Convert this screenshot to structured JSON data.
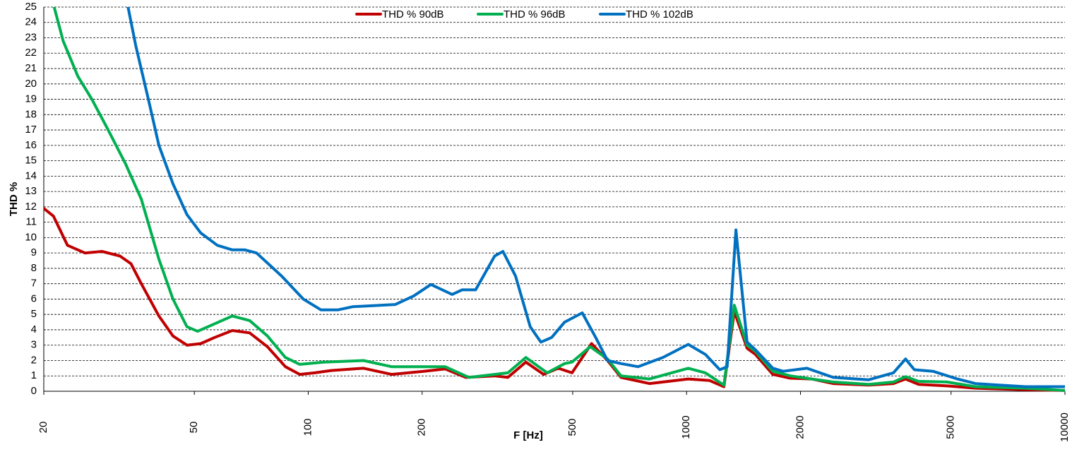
{
  "chart_data": {
    "type": "line",
    "x_label": "F [Hz]",
    "y_label": "THD %",
    "log_x": true,
    "grid": true,
    "legend": "top",
    "xlim": [
      20,
      10000
    ],
    "xticks": [
      20,
      50,
      100,
      200,
      500,
      1000,
      2000,
      5000,
      10000
    ],
    "ylim": [
      0,
      25
    ],
    "yticks": [
      0,
      1,
      2,
      3,
      4,
      5,
      6,
      7,
      8,
      9,
      10,
      11,
      12,
      13,
      14,
      15,
      16,
      17,
      18,
      19,
      20,
      21,
      22,
      23,
      24,
      25
    ],
    "series": [
      {
        "name": "THD % 90dB",
        "color": "#c00000",
        "x": [
          20,
          21.2,
          23.1,
          25.7,
          28.5,
          31.8,
          34,
          36.2,
          40.3,
          43.9,
          47.8,
          52,
          56.6,
          63,
          70,
          78,
          87,
          95,
          104,
          115,
          140,
          166,
          202,
          230,
          261,
          311,
          337,
          376,
          419,
          458,
          498,
          561,
          618,
          671,
          798,
          1010,
          1150,
          1255,
          1337,
          1445,
          1520,
          1690,
          1880,
          2140,
          2440,
          3030,
          3520,
          3790,
          4100,
          4880,
          5800,
          7850,
          10000
        ],
        "values": [
          11.9,
          11.4,
          9.5,
          9.0,
          9.1,
          8.8,
          8.3,
          7.0,
          4.9,
          3.6,
          3.0,
          3.1,
          3.5,
          3.95,
          3.8,
          2.9,
          1.6,
          1.1,
          1.2,
          1.35,
          1.5,
          1.1,
          1.3,
          1.45,
          0.9,
          1.0,
          0.9,
          1.9,
          1.1,
          1.5,
          1.2,
          3.1,
          2.0,
          0.9,
          0.5,
          0.8,
          0.7,
          0.3,
          5.2,
          2.8,
          2.4,
          1.1,
          0.85,
          0.8,
          0.5,
          0.4,
          0.5,
          0.8,
          0.45,
          0.35,
          0.2,
          0.1,
          0.05
        ]
      },
      {
        "name": "THD % 96dB",
        "color": "#00b050",
        "x": [
          21.3,
          22.5,
          24.6,
          26.8,
          29.6,
          32.9,
          36.2,
          40.3,
          43.9,
          47.8,
          51,
          55.5,
          63,
          70,
          78,
          87,
          95,
          110,
          140,
          166,
          230,
          266,
          311,
          337,
          376,
          428,
          476,
          498,
          556,
          618,
          671,
          798,
          1010,
          1121,
          1255,
          1337,
          1445,
          1520,
          1690,
          1880,
          2140,
          2440,
          3030,
          3520,
          3790,
          4100,
          4880,
          5800,
          7850,
          10000
        ],
        "values": [
          25,
          22.8,
          20.5,
          19,
          17,
          14.8,
          12.5,
          8.6,
          6,
          4.2,
          3.9,
          4.3,
          4.9,
          4.6,
          3.6,
          2.2,
          1.75,
          1.9,
          2.0,
          1.6,
          1.6,
          0.9,
          1.1,
          1.2,
          2.2,
          1.2,
          1.8,
          1.9,
          2.9,
          2.1,
          1.0,
          0.8,
          1.5,
          1.2,
          0.4,
          5.6,
          3.0,
          2.6,
          1.3,
          1.0,
          0.8,
          0.6,
          0.45,
          0.6,
          0.95,
          0.65,
          0.6,
          0.3,
          0.2,
          0.05
        ]
      },
      {
        "name": "THD % 102dB",
        "color": "#0070c0",
        "x": [
          33.4,
          35,
          37.8,
          40.3,
          43.9,
          47.8,
          52,
          57.5,
          63,
          68,
          73,
          85,
          97,
          108,
          120,
          131,
          143,
          170,
          190,
          211,
          240,
          255,
          277,
          311,
          327,
          353,
          386,
          412,
          440,
          476,
          530,
          575,
          618,
          671,
          744,
          866,
          1010,
          1121,
          1224,
          1280,
          1350,
          1445,
          1520,
          1690,
          1800,
          2080,
          2440,
          3030,
          3520,
          3790,
          4000,
          4480,
          5200,
          5800,
          7850,
          10000
        ],
        "values": [
          25,
          22.5,
          19,
          16,
          13.5,
          11.5,
          10.3,
          9.5,
          9.2,
          9.2,
          9.0,
          7.5,
          6.0,
          5.3,
          5.3,
          5.5,
          5.55,
          5.65,
          6.2,
          6.95,
          6.3,
          6.6,
          6.6,
          8.8,
          9.1,
          7.5,
          4.2,
          3.2,
          3.5,
          4.5,
          5.1,
          3.5,
          2.0,
          1.8,
          1.6,
          2.2,
          3.05,
          2.4,
          1.4,
          1.6,
          10.5,
          3.2,
          2.7,
          1.5,
          1.3,
          1.5,
          0.9,
          0.75,
          1.2,
          2.1,
          1.4,
          1.3,
          0.8,
          0.5,
          0.3,
          0.3
        ]
      }
    ]
  }
}
